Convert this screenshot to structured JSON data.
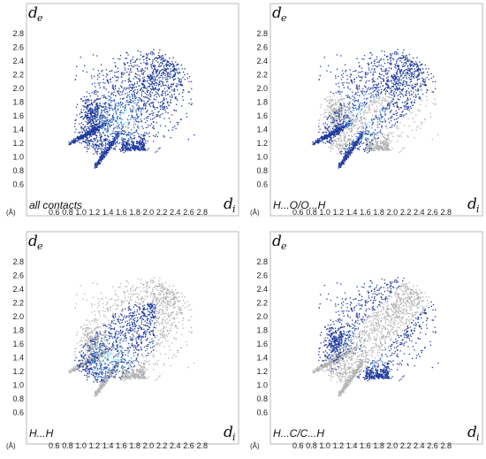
{
  "figure": {
    "axis_unit": "(Å)",
    "y_symbol": "d",
    "y_sub": "e",
    "x_symbol": "d",
    "x_sub": "i"
  },
  "colors": {
    "frame": "#b9b9b9",
    "background_points": "#b3b3b3",
    "highlight_low": "#1f3a9e",
    "highlight_mid": "#3a78c8",
    "highlight_high": "#6ff0ff"
  },
  "chart_data": [
    {
      "type": "scatter",
      "panel_label": "all contacts",
      "xlabel": "di",
      "ylabel": "de",
      "xlim": [
        0.4,
        3.0
      ],
      "ylim": [
        0.4,
        2.9
      ],
      "x_ticks": [
        "0.6",
        "0.8",
        "1.0",
        "1.2",
        "1.4",
        "1.6",
        "1.8",
        "2.0",
        "2.2",
        "2.4",
        "2.6",
        "2.8"
      ],
      "y_ticks": [
        "0.6",
        "0.8",
        "1.0",
        "1.2",
        "1.4",
        "1.6",
        "1.8",
        "2.0",
        "2.2",
        "2.4",
        "2.6",
        "2.8"
      ],
      "highlight": "all",
      "highlight_density_peak": [
        1.6,
        1.6
      ]
    },
    {
      "type": "scatter",
      "panel_label": "H...O/O...H",
      "xlabel": "di",
      "ylabel": "de",
      "xlim": [
        0.4,
        3.0
      ],
      "ylim": [
        0.4,
        2.9
      ],
      "x_ticks": [
        "0.6",
        "0.8",
        "1.0",
        "1.2",
        "1.4",
        "1.6",
        "1.8",
        "2.0",
        "2.2",
        "2.4",
        "2.6",
        "2.8"
      ],
      "y_ticks": [
        "0.6",
        "0.8",
        "1.0",
        "1.2",
        "1.4",
        "1.6",
        "1.8",
        "2.0",
        "2.2",
        "2.4",
        "2.6",
        "2.8"
      ],
      "highlight": "H...O spikes",
      "spike_tips": [
        [
          0.82,
          1.2
        ],
        [
          1.2,
          0.85
        ]
      ]
    },
    {
      "type": "scatter",
      "panel_label": "H...H",
      "xlabel": "di",
      "ylabel": "de",
      "xlim": [
        0.4,
        3.0
      ],
      "ylim": [
        0.4,
        2.9
      ],
      "x_ticks": [
        "0.6",
        "0.8",
        "1.0",
        "1.2",
        "1.4",
        "1.6",
        "1.8",
        "2.0",
        "2.2",
        "2.4",
        "2.6",
        "2.8"
      ],
      "y_ticks": [
        "0.6",
        "0.8",
        "1.0",
        "1.2",
        "1.4",
        "1.6",
        "1.8",
        "2.0",
        "2.2",
        "2.4",
        "2.6",
        "2.8"
      ],
      "highlight": "central region",
      "highlight_density_peak": [
        1.45,
        1.4
      ]
    },
    {
      "type": "scatter",
      "panel_label": "H...C/C...H",
      "xlabel": "di",
      "ylabel": "de",
      "xlim": [
        0.4,
        3.0
      ],
      "ylim": [
        0.4,
        2.9
      ],
      "x_ticks": [
        "0.6",
        "0.8",
        "1.0",
        "1.2",
        "1.4",
        "1.6",
        "1.8",
        "2.0",
        "2.2",
        "2.4",
        "2.6",
        "2.8"
      ],
      "y_ticks": [
        "0.6",
        "0.8",
        "1.0",
        "1.2",
        "1.4",
        "1.6",
        "1.8",
        "2.0",
        "2.2",
        "2.4",
        "2.6",
        "2.8"
      ],
      "highlight": "wings",
      "wing_tips": [
        [
          1.1,
          1.75
        ],
        [
          1.75,
          1.1
        ]
      ]
    }
  ]
}
